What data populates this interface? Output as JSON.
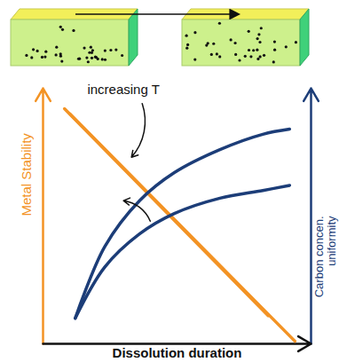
{
  "chart_data": {
    "type": "line",
    "xlabel": "Dissolution duration",
    "ylabel": "Metal Stability",
    "y2label": "Carbon concen. uniformity",
    "xlim": [
      0,
      10
    ],
    "ylim": [
      0,
      10
    ],
    "y2lim": [
      0,
      10
    ],
    "tick_labels": false,
    "grid": false,
    "annotations": [
      {
        "text": "increasing T"
      }
    ],
    "series": [
      {
        "color": "#f39324",
        "x": [
          0.8,
          8.4
        ],
        "values": [
          9.2,
          1.1
        ]
      },
      {
        "color": "#f39324",
        "x": [
          1.0,
          9.4
        ],
        "values": [
          9.0,
          0.1
        ]
      },
      {
        "color": "#1c3d78",
        "axis": "y2",
        "x": [
          1.2,
          2.3,
          3.6,
          4.9,
          6.6,
          8.2,
          9.2
        ],
        "values": [
          1.0,
          3.8,
          5.6,
          6.7,
          7.6,
          8.2,
          8.4
        ]
      },
      {
        "color": "#1c3d78",
        "axis": "y2",
        "x": [
          1.2,
          2.3,
          3.6,
          4.9,
          6.6,
          8.2,
          9.2
        ],
        "values": [
          1.0,
          3.0,
          4.3,
          5.1,
          5.7,
          6.0,
          6.2
        ]
      }
    ]
  }
}
